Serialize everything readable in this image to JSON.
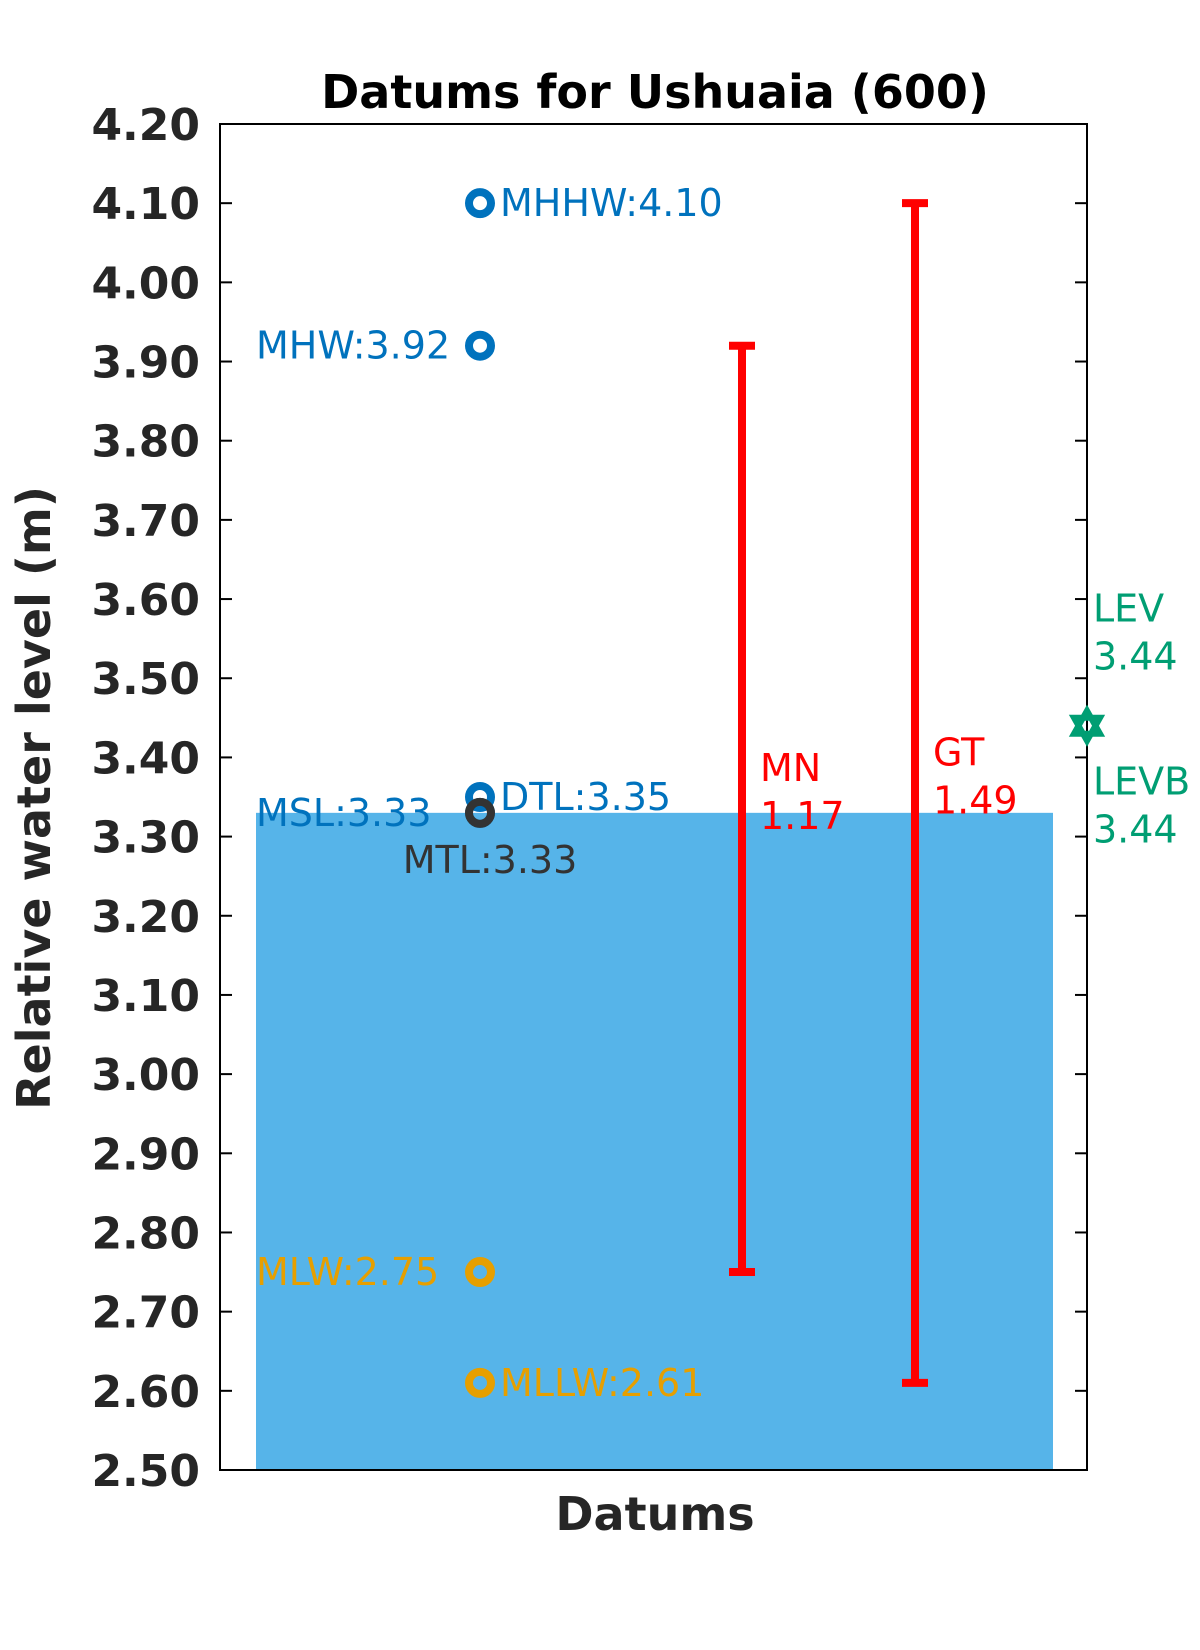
{
  "chart_data": {
    "type": "scatter",
    "title": "Datums for Ushuaia (600)",
    "xlabel": "Datums",
    "ylabel": "Relative water level (m)",
    "ylim": [
      2.5,
      4.2
    ],
    "yticks": [
      "4.20",
      "4.10",
      "4.00",
      "3.90",
      "3.80",
      "3.70",
      "3.60",
      "3.50",
      "3.40",
      "3.30",
      "3.20",
      "3.10",
      "3.00",
      "2.90",
      "2.80",
      "2.70",
      "2.60",
      "2.50"
    ],
    "grid": false,
    "colors": {
      "high": "#0072bd",
      "mid": "#333333",
      "low": "#e69f00",
      "range": "#ff0000",
      "lev": "#009e73",
      "msl_bar": "#56b4e9"
    },
    "msl_bar": {
      "value": 3.33
    },
    "datums": [
      {
        "name": "MHHW",
        "value": 4.1,
        "label": "MHHW:4.10",
        "group": "high",
        "label_side": "right"
      },
      {
        "name": "MHW",
        "value": 3.92,
        "label": "MHW:3.92",
        "group": "high",
        "label_side": "left"
      },
      {
        "name": "DTL",
        "value": 3.35,
        "label": "DTL:3.35",
        "group": "high",
        "label_side": "right"
      },
      {
        "name": "MSL",
        "value": 3.33,
        "label": "MSL:3.33",
        "group": "high",
        "label_side": "left"
      },
      {
        "name": "MTL",
        "value": 3.33,
        "label": "MTL:3.33",
        "group": "mid",
        "label_side": "below"
      },
      {
        "name": "MLW",
        "value": 2.75,
        "label": "MLW:2.75",
        "group": "low",
        "label_side": "left"
      },
      {
        "name": "MLLW",
        "value": 2.61,
        "label": "MLLW:2.61",
        "group": "low",
        "label_side": "right"
      }
    ],
    "ranges": [
      {
        "name": "MN",
        "low": 2.75,
        "high": 3.92,
        "label_line1": "MN",
        "label_line2": "1.17"
      },
      {
        "name": "GT",
        "low": 2.61,
        "high": 4.1,
        "label_line1": "GT",
        "label_line2": "1.49"
      }
    ],
    "lev": [
      {
        "name": "LEV",
        "value": 3.44,
        "label_line1": "LEV",
        "label_line2": "3.44",
        "side": "above"
      },
      {
        "name": "LEVB",
        "value": 3.44,
        "label_line1": "LEVB",
        "label_line2": "3.44",
        "side": "below"
      }
    ]
  }
}
